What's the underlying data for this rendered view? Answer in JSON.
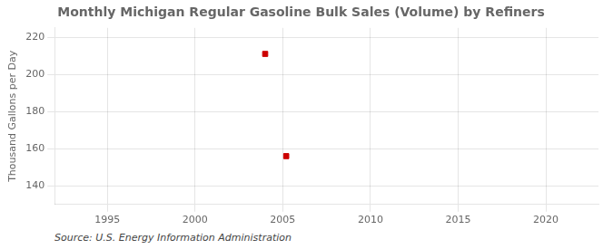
{
  "chart_data": {
    "type": "scatter",
    "title": "Monthly Michigan Regular Gasoline Bulk Sales (Volume) by Refiners",
    "ylabel": "Thousand Gallons per Day",
    "annotation": "Source: U.S. Energy Information Administration",
    "x": [
      2004.0,
      2005.2
    ],
    "values": [
      211,
      156
    ],
    "color": "#cc0000",
    "marker": "square",
    "xlim": [
      1992,
      2023
    ],
    "xticks": [
      1995,
      2000,
      2005,
      2010,
      2015,
      2020
    ],
    "ylim": [
      130,
      225
    ],
    "yticks": [
      140,
      160,
      180,
      200,
      220
    ],
    "grid": true
  }
}
